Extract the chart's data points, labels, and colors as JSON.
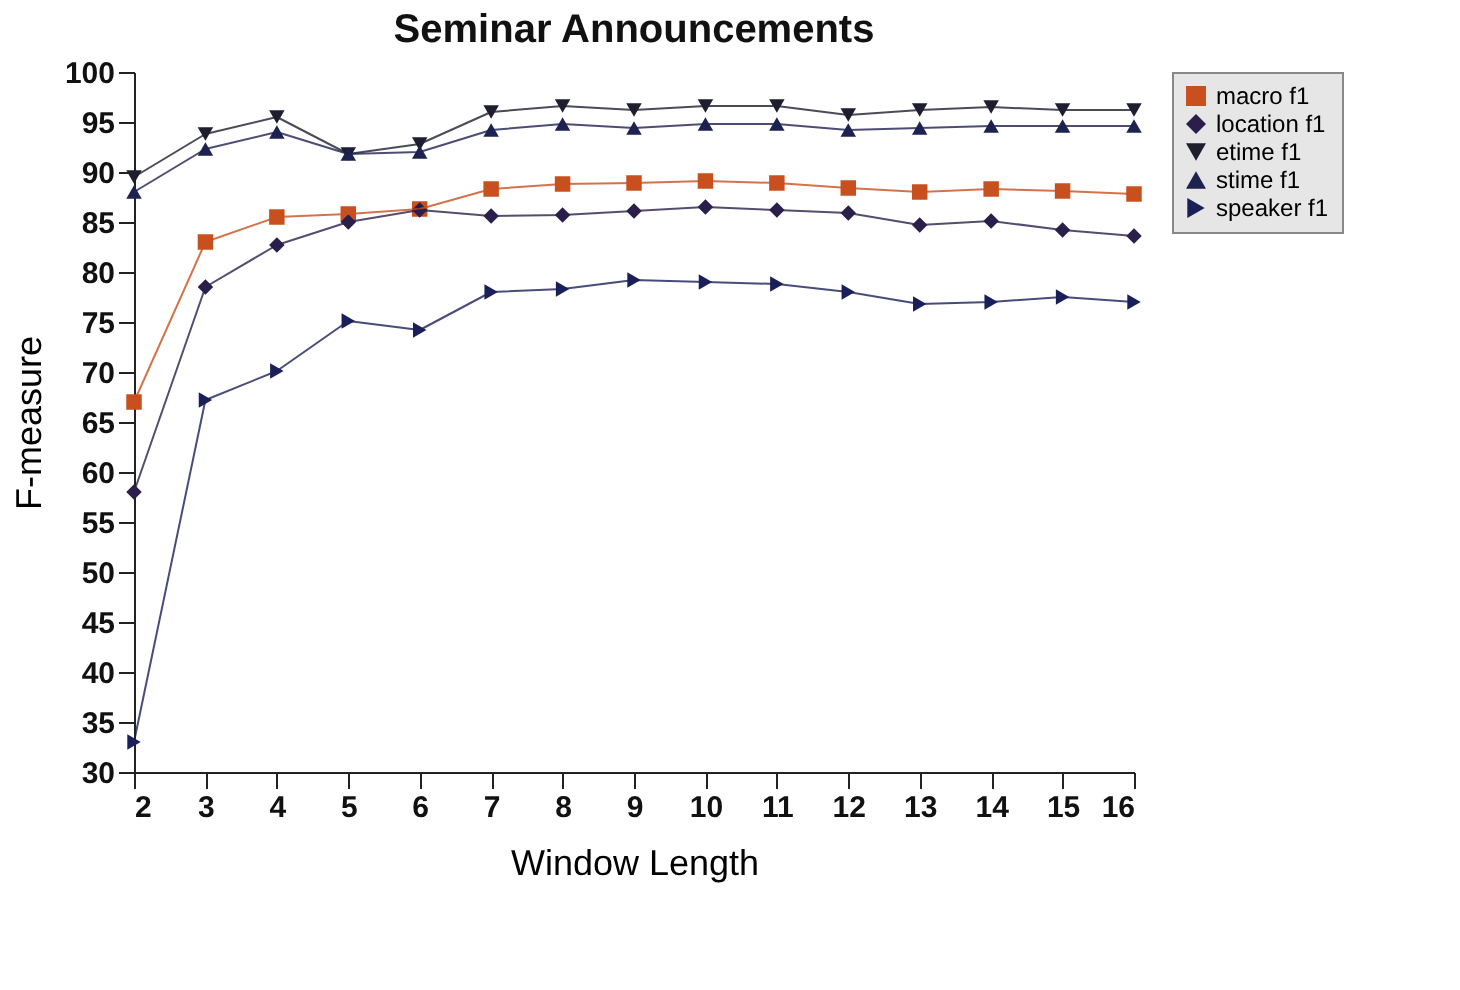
{
  "chart_data": {
    "type": "line",
    "title": "Seminar Announcements",
    "xlabel": "Window Length",
    "ylabel": "F-measure",
    "x": [
      2,
      3,
      4,
      5,
      6,
      7,
      8,
      9,
      10,
      11,
      12,
      13,
      14,
      15,
      16
    ],
    "xlim": [
      2,
      16
    ],
    "xticks": [
      2,
      3,
      4,
      5,
      6,
      7,
      8,
      9,
      10,
      11,
      12,
      13,
      14,
      15,
      16
    ],
    "ylim": [
      30,
      100
    ],
    "yticks": [
      30,
      35,
      40,
      45,
      50,
      55,
      60,
      65,
      70,
      75,
      80,
      85,
      90,
      95,
      100
    ],
    "grid": false,
    "legend": "right",
    "series": [
      {
        "name": "macro f1",
        "color": "#c8501e",
        "marker": "square",
        "values": [
          67,
          83,
          85.5,
          85.8,
          86.3,
          88.3,
          88.8,
          88.9,
          89.1,
          88.9,
          88.4,
          88.0,
          88.3,
          88.1,
          87.8
        ]
      },
      {
        "name": "location f1",
        "color": "#2a1f4a",
        "marker": "diamond",
        "values": [
          58,
          78.5,
          82.7,
          85,
          86.2,
          85.6,
          85.7,
          86.1,
          86.5,
          86.2,
          85.9,
          84.7,
          85.1,
          84.2,
          83.6
        ]
      },
      {
        "name": "etime f1",
        "color": "#1e1e2e",
        "marker": "triangle-down",
        "values": [
          89.5,
          93.8,
          95.5,
          91.8,
          92.8,
          96,
          96.6,
          96.2,
          96.6,
          96.6,
          95.7,
          96.2,
          96.5,
          96.2,
          96.2
        ]
      },
      {
        "name": "stime f1",
        "color": "#1e2250",
        "marker": "triangle-up",
        "values": [
          88,
          92.3,
          94,
          91.8,
          92,
          94.2,
          94.8,
          94.4,
          94.8,
          94.8,
          94.2,
          94.4,
          94.6,
          94.6,
          94.6
        ]
      },
      {
        "name": "speaker f1",
        "color": "#1a1f5a",
        "marker": "triangle-right",
        "values": [
          33,
          67.2,
          70.1,
          75.1,
          74.2,
          78,
          78.3,
          79.2,
          79,
          78.8,
          78,
          76.8,
          77,
          77.5,
          77
        ]
      }
    ]
  }
}
